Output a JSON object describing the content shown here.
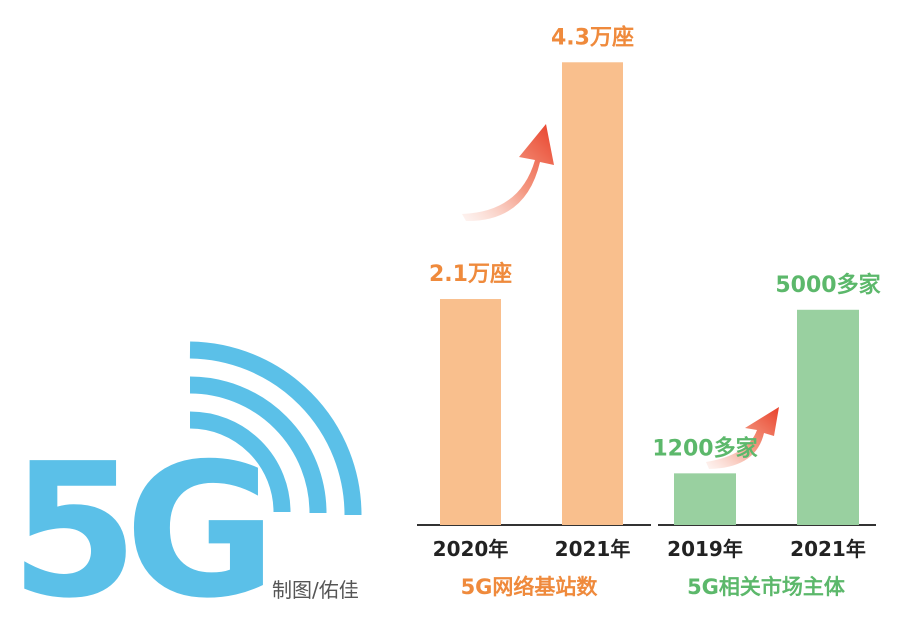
{
  "credit": "制图/佑佳",
  "logo_text": "5G",
  "colors": {
    "orange_bar": "#f9bf8d",
    "orange_text": "#ef8a3c",
    "green_bar": "#99d0a0",
    "green_text": "#5cb86b",
    "logo_blue": "#5bc0e8",
    "arrow_red": "#e8402a",
    "axis": "#333333"
  },
  "chart_data": [
    {
      "type": "bar",
      "title": "5G网络基站数",
      "categories": [
        "2020年",
        "2021年"
      ],
      "values": [
        2.1,
        4.3
      ],
      "data_labels": [
        "2.1万座",
        "4.3万座"
      ],
      "unit": "万座",
      "ylim": [
        0,
        4.6
      ],
      "grid": false,
      "color_key": "orange"
    },
    {
      "type": "bar",
      "title": "5G相关市场主体",
      "categories": [
        "2019年",
        "2021年"
      ],
      "values": [
        1200,
        5000
      ],
      "data_labels": [
        "1200多家",
        "5000多家"
      ],
      "unit": "多家",
      "ylim": [
        0,
        11500
      ],
      "grid": false,
      "color_key": "green"
    }
  ]
}
